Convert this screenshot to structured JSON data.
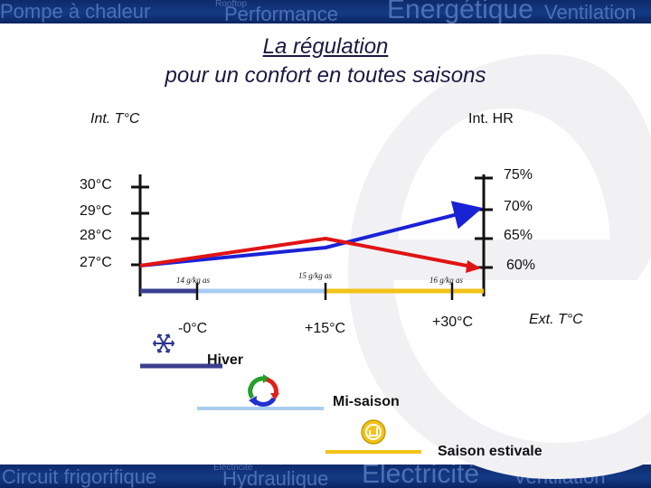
{
  "header_band": {
    "words": [
      "Pompe à chaleur",
      "Rooftop",
      "Performance",
      "Énergétique",
      "Ventilation"
    ]
  },
  "footer_band": {
    "words": [
      "Circuit frigorifique",
      "Électricité",
      "Hydraulique",
      "Électricité",
      "Ventilation"
    ]
  },
  "title": {
    "line1": "La régulation ",
    "line2": "pour un confort en toutes saisons"
  },
  "axes": {
    "left_label": "Int. T°C",
    "right_label": "Int. HR",
    "bottom_label": "Ext. T°C"
  },
  "left_ticks": [
    "30°C",
    "29°C",
    "28°C",
    "27°C"
  ],
  "right_ticks": [
    "75%",
    "70%",
    "65%",
    "60%"
  ],
  "humidity_labels": [
    "14 g/kg as",
    "15 g/kg as",
    "16 g/kg as"
  ],
  "outdoor_ticks": [
    "-0°C",
    "+15°C",
    "+30°C"
  ],
  "legend": {
    "winter": "Hiver",
    "mid_season": "Mi-saison",
    "summer": "Saison estivale"
  },
  "colors": {
    "winter": "#3a3f8f",
    "mid_season": "#a9cdf0",
    "summer": "#f2c318",
    "temperature_line": "#1a22d6",
    "humidity_line": "#e01414",
    "header_band": "#143a86"
  },
  "icons": {
    "winter": "snowflake-icon",
    "mid_season": "cycle-arrows-icon",
    "summer": "sun-icon"
  }
}
